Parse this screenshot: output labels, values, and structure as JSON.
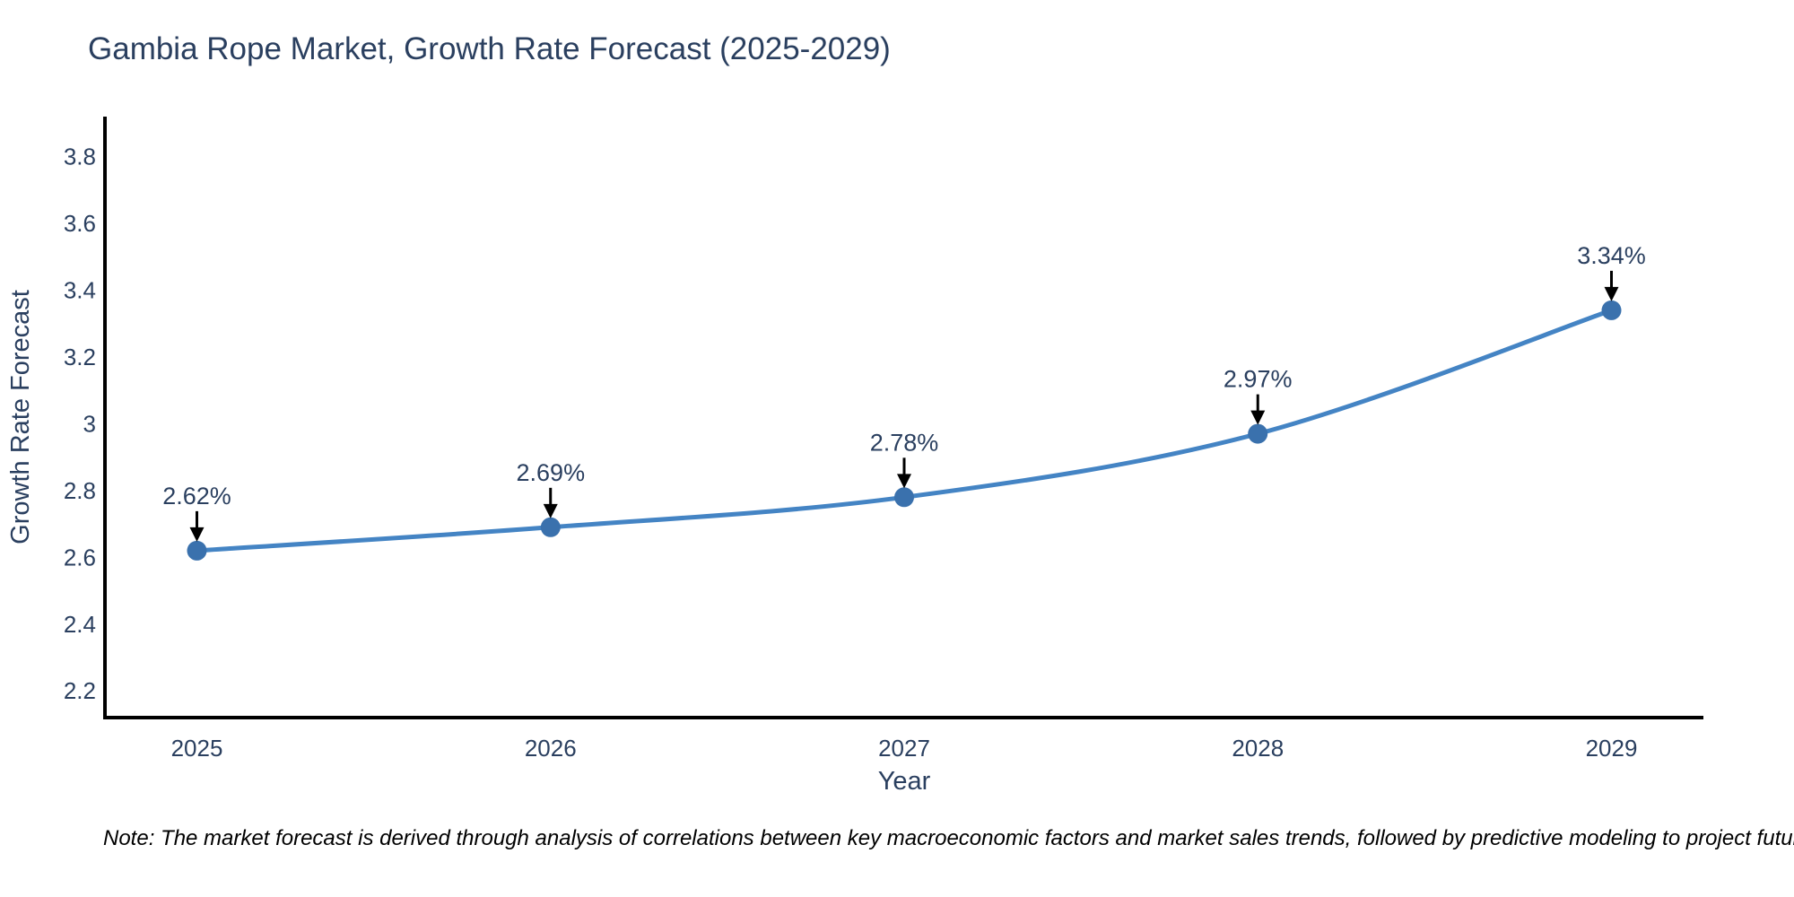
{
  "chart": {
    "title": "Gambia Rope Market, Growth Rate Forecast (2025-2029)",
    "note": "Note: The market forecast is derived through analysis of correlations between key macroeconomic factors and market sales trends, followed by predictive modeling to project future sales"
  },
  "chart_data": {
    "type": "line",
    "title": "Gambia Rope Market, Growth Rate Forecast (2025-2029)",
    "xlabel": "Year",
    "ylabel": "Growth Rate Forecast",
    "x": [
      2025,
      2026,
      2027,
      2028,
      2029
    ],
    "values": [
      2.62,
      2.69,
      2.78,
      2.97,
      3.34
    ],
    "point_labels": [
      "2.62%",
      "2.69%",
      "2.78%",
      "2.97%",
      "3.34%"
    ],
    "line_shape": "spline",
    "grid": false,
    "legend": "none",
    "xlim": [
      2024.74,
      2029.26
    ],
    "ylim": [
      2.12,
      3.92
    ],
    "xticks": [
      2025,
      2026,
      2027,
      2028,
      2029
    ],
    "xtick_labels": [
      "2025",
      "2026",
      "2027",
      "2028",
      "2029"
    ],
    "yticks": [
      2.2,
      2.4,
      2.6,
      2.8,
      3.0,
      3.2,
      3.4,
      3.6,
      3.8
    ],
    "ytick_labels": [
      "2.2",
      "2.4",
      "2.6",
      "2.8",
      "3",
      "3.2",
      "3.4",
      "3.6",
      "3.8"
    ],
    "colors": {
      "line": "#4484c4",
      "marker": "#3a71ad",
      "axis_line": "#000000",
      "text": "#2a3f5f",
      "annotation_text": "#2a3f5f",
      "arrow": "#000000",
      "background": "#ffffff"
    }
  }
}
